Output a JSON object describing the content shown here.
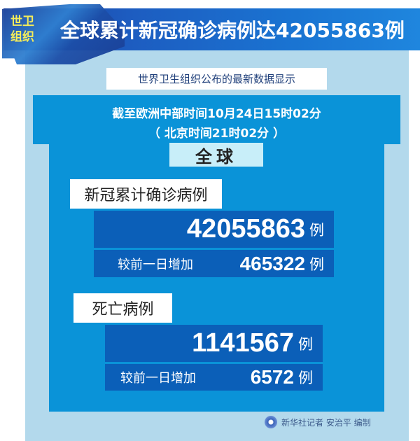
{
  "header": {
    "org": "世卫组织",
    "title": "全球累计新冠确诊病例达42055863例"
  },
  "subtitle": "世界卫生组织公布的最新数据显示",
  "time": {
    "line1": "截至欧洲中部时间10月24日15时02分",
    "line2": "（ 北京时间21时02分 ）"
  },
  "scope": "全球",
  "confirmed": {
    "label": "新冠累计确诊病例",
    "total": "42055863",
    "unit": "例",
    "increase_label": "较前一日增加",
    "increase": "465322"
  },
  "deaths": {
    "label": "死亡病例",
    "total": "1141567",
    "unit": "例",
    "increase_label": "较前一日增加",
    "increase": "6572"
  },
  "footer": {
    "credit": "新华社记者 安治平 编制"
  },
  "colors": {
    "banner": "#1d5cc0",
    "panel": "#b3d9ec",
    "main": "#0a93d8",
    "box": "#0b5fb8",
    "org_text": "#f4ec5a"
  }
}
